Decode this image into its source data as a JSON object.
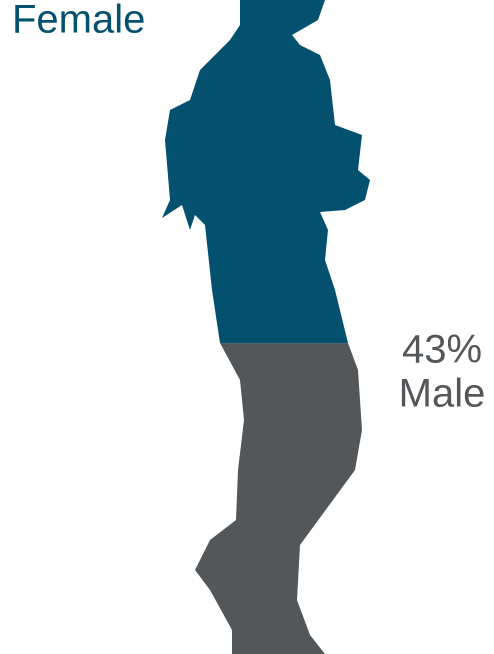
{
  "chart_data": {
    "type": "pictogram",
    "categories": [
      "Female",
      "Male"
    ],
    "values": [
      57,
      43
    ],
    "value_labels": [
      null,
      "43%"
    ],
    "colors": [
      "#03506f",
      "#54575a"
    ]
  }
}
